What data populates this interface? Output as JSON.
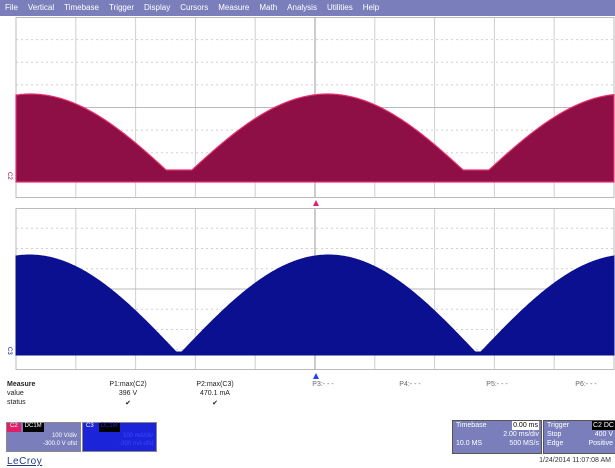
{
  "menu": [
    "File",
    "Vertical",
    "Timebase",
    "Trigger",
    "Display",
    "Cursors",
    "Measure",
    "Math",
    "Analysis",
    "Utilities",
    "Help"
  ],
  "colors": {
    "c2": "#8e0f45",
    "c2_edge": "#e8326f",
    "c3": "#0a108f",
    "menubar": "#7a7fbb",
    "c2_tag": "#e01e6a",
    "c3_tag": "#1c24d9",
    "trigger_marker": "#e0206a",
    "timebase_marker": "#2040ff"
  },
  "channel_labels": {
    "c2": "C2",
    "c3": "C3"
  },
  "measure": {
    "title": "Measure",
    "row_labels": [
      "value",
      "status"
    ],
    "params": [
      {
        "name": "P1:max(C2)",
        "value": "396 V",
        "status": "✔"
      },
      {
        "name": "P2:max(C3)",
        "value": "470.1 mA",
        "status": "✔"
      },
      {
        "name": "P3:- - -",
        "value": "",
        "status": ""
      },
      {
        "name": "P4:- - -",
        "value": "",
        "status": ""
      },
      {
        "name": "P5:- - -",
        "value": "",
        "status": ""
      },
      {
        "name": "P6:- - -",
        "value": "",
        "status": ""
      }
    ]
  },
  "c2_box": {
    "tag": "C2",
    "coupling": "DC1M",
    "scale": "100 V/div",
    "offset": "-300.0 V ofst"
  },
  "c3_box": {
    "tag": "C3",
    "coupling": "DC1M",
    "scale": "100 mA/div",
    "offset": "-300 mA ofst"
  },
  "timebase": {
    "label": "Timebase",
    "delay": "0.00 ms",
    "per_div": "2.00 ms/div",
    "memory": "10.0 MS",
    "rate": "500 MS/s"
  },
  "trigger": {
    "label": "Trigger",
    "source": "C2 DC",
    "mode": "Stop",
    "level": "400 V",
    "type": "Edge",
    "slope": "Positive"
  },
  "logo": "LeCroy",
  "datetime": "1/24/2014 11:07:08 AM"
}
